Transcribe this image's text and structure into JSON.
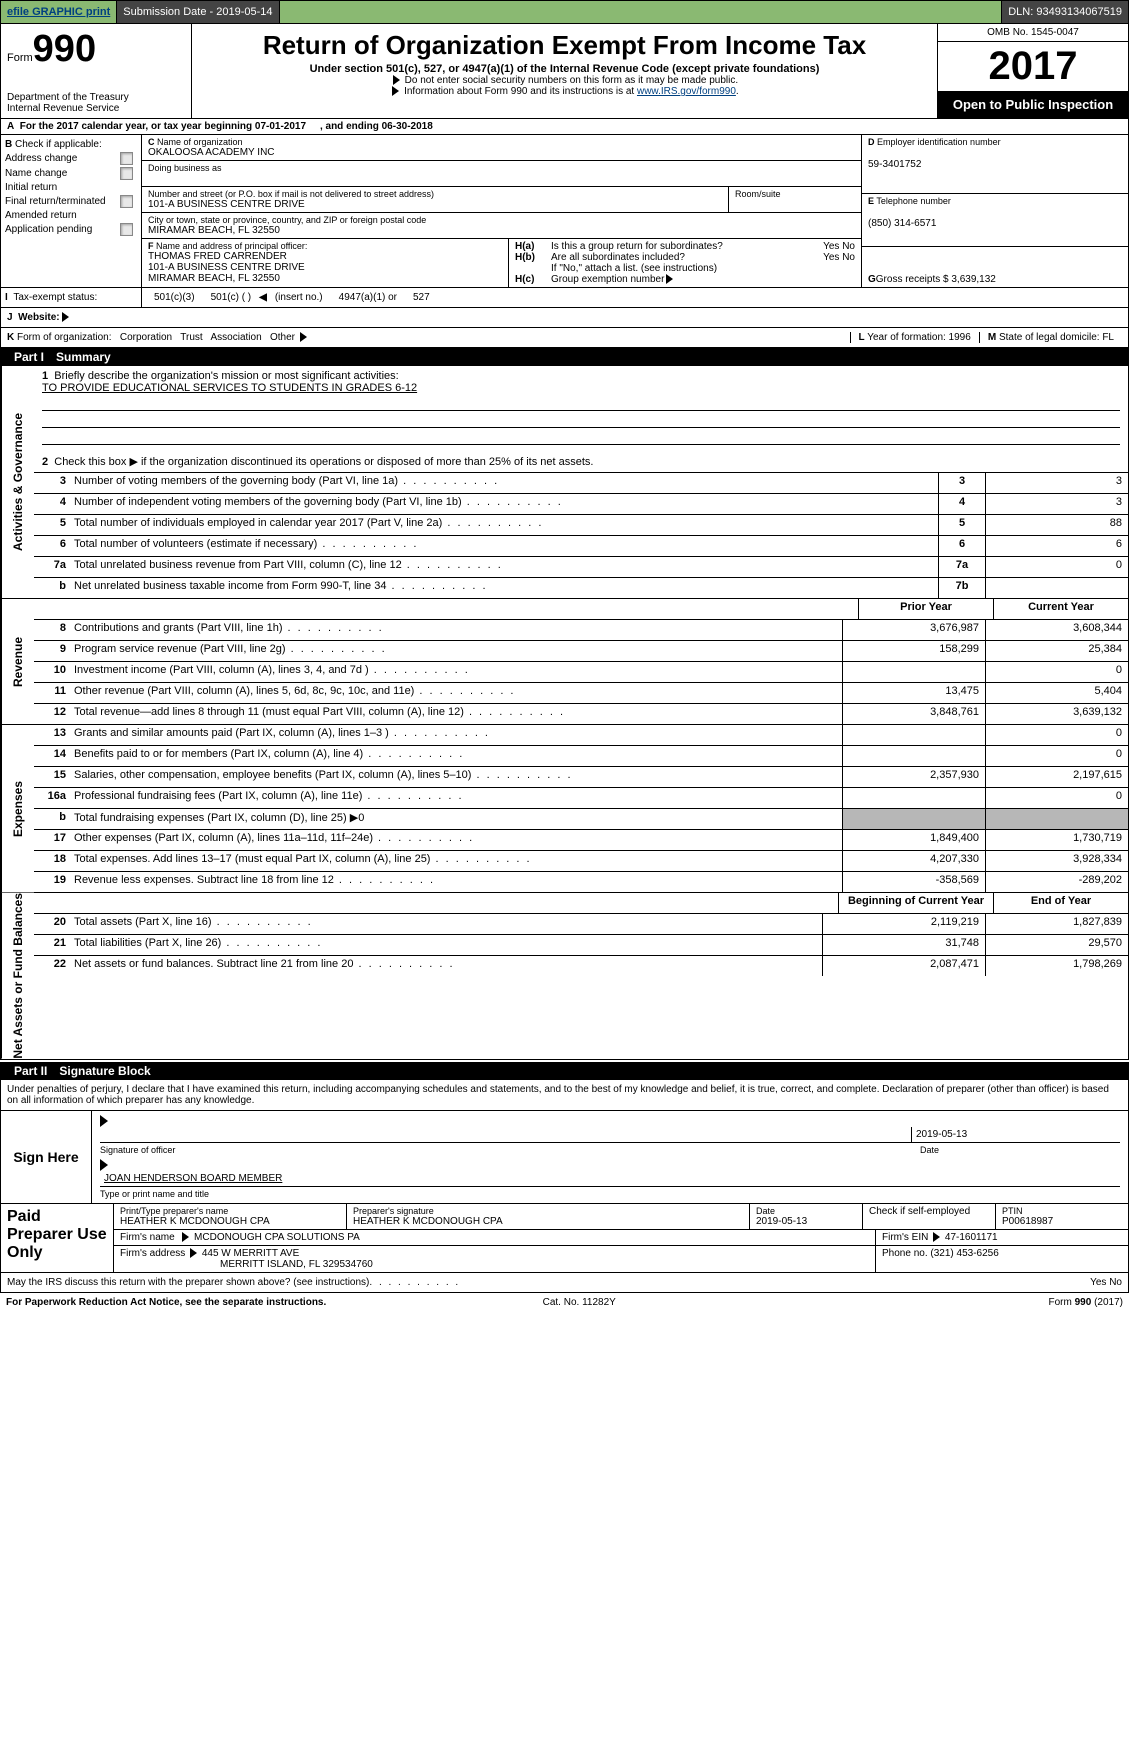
{
  "top": {
    "efile": "efile GRAPHIC print",
    "sub_date_lbl": "Submission Date - 2019-05-14",
    "dln_lbl": "DLN: 93493134067519"
  },
  "header": {
    "form_word": "Form",
    "form_no": "990",
    "dept1": "Department of the Treasury",
    "dept2": "Internal Revenue Service",
    "title": "Return of Organization Exempt From Income Tax",
    "subtitle": "Under section 501(c), 527, or 4947(a)(1) of the Internal Revenue Code (except private foundations)",
    "note1": "Do not enter social security numbers on this form as it may be made public.",
    "note2_a": "Information about Form 990 and its instructions is at ",
    "note2_link": "www.IRS.gov/form990",
    "omb": "OMB No. 1545-0047",
    "year": "2017",
    "open": "Open to Public Inspection"
  },
  "A": {
    "text_a": "For the 2017 calendar year, or tax year beginning 07-01-2017",
    "text_b": ", and ending 06-30-2018"
  },
  "B": {
    "hdr": "Check if applicable:",
    "items": [
      "Address change",
      "Name change",
      "Initial return",
      "Final return/terminated",
      "Amended return",
      "Application pending"
    ]
  },
  "C": {
    "name_lbl": "Name of organization",
    "name": "OKALOOSA ACADEMY INC",
    "dba_lbl": "Doing business as",
    "addr_lbl": "Number and street (or P.O. box if mail is not delivered to street address)",
    "room_lbl": "Room/suite",
    "addr": "101-A BUSINESS CENTRE DRIVE",
    "city_lbl": "City or town, state or province, country, and ZIP or foreign postal code",
    "city": "MIRAMAR BEACH, FL  32550",
    "F_lbl": "Name and address of principal officer:",
    "F1": "THOMAS FRED CARRENDER",
    "F2": "101-A BUSINESS CENTRE DRIVE",
    "F3": "MIRAMAR BEACH, FL  32550"
  },
  "D": {
    "ein_lbl": "Employer identification number",
    "ein": "59-3401752",
    "tel_lbl": "Telephone number",
    "tel": "(850) 314-6571",
    "gross_lbl": "Gross receipts $ 3,639,132"
  },
  "H": {
    "a": "Is this a group return for subordinates?",
    "b": "Are all subordinates included?",
    "b2": "If \"No,\" attach a list. (see instructions)",
    "c": "Group exemption number",
    "yes": "Yes",
    "no": "No"
  },
  "I": {
    "lbl": "Tax-exempt status:",
    "o1": "501(c)(3)",
    "o2": "501(c) (  )",
    "o2b": "(insert no.)",
    "o3": "4947(a)(1) or",
    "o4": "527"
  },
  "J": {
    "lbl": "Website:"
  },
  "K": {
    "lbl": "Form of organization:",
    "o1": "Corporation",
    "o2": "Trust",
    "o3": "Association",
    "o4": "Other",
    "L": "Year of formation: 1996",
    "M": "State of legal domicile: FL"
  },
  "part1": {
    "hdr": "Part I",
    "ttl": "Summary",
    "vlab_gov": "Activities & Governance",
    "vlab_rev": "Revenue",
    "vlab_exp": "Expenses",
    "vlab_net": "Net Assets or Fund Balances",
    "l1": "Briefly describe the organization's mission or most significant activities:",
    "l1v": "TO PROVIDE EDUCATIONAL SERVICES TO STUDENTS IN GRADES 6-12",
    "l2": "Check this box ▶   if the organization discontinued its operations or disposed of more than 25% of its net assets.",
    "lines_gov": [
      {
        "no": "3",
        "txt": "Number of voting members of the governing body (Part VI, line 1a)",
        "box": "3",
        "val": "3"
      },
      {
        "no": "4",
        "txt": "Number of independent voting members of the governing body (Part VI, line 1b)",
        "box": "4",
        "val": "3"
      },
      {
        "no": "5",
        "txt": "Total number of individuals employed in calendar year 2017 (Part V, line 2a)",
        "box": "5",
        "val": "88"
      },
      {
        "no": "6",
        "txt": "Total number of volunteers (estimate if necessary)",
        "box": "6",
        "val": "6"
      },
      {
        "no": "7a",
        "txt": "Total unrelated business revenue from Part VIII, column (C), line 12",
        "box": "7a",
        "val": "0"
      },
      {
        "no": "b",
        "txt": "Net unrelated business taxable income from Form 990-T, line 34",
        "box": "7b",
        "val": ""
      }
    ],
    "prior": "Prior Year",
    "curr": "Current Year",
    "rev": [
      {
        "no": "8",
        "txt": "Contributions and grants (Part VIII, line 1h)",
        "p": "3,676,987",
        "c": "3,608,344"
      },
      {
        "no": "9",
        "txt": "Program service revenue (Part VIII, line 2g)",
        "p": "158,299",
        "c": "25,384"
      },
      {
        "no": "10",
        "txt": "Investment income (Part VIII, column (A), lines 3, 4, and 7d )",
        "p": "",
        "c": "0"
      },
      {
        "no": "11",
        "txt": "Other revenue (Part VIII, column (A), lines 5, 6d, 8c, 9c, 10c, and 11e)",
        "p": "13,475",
        "c": "5,404"
      },
      {
        "no": "12",
        "txt": "Total revenue—add lines 8 through 11 (must equal Part VIII, column (A), line 12)",
        "p": "3,848,761",
        "c": "3,639,132"
      }
    ],
    "exp": [
      {
        "no": "13",
        "txt": "Grants and similar amounts paid (Part IX, column (A), lines 1–3 )",
        "p": "",
        "c": "0"
      },
      {
        "no": "14",
        "txt": "Benefits paid to or for members (Part IX, column (A), line 4)",
        "p": "",
        "c": "0"
      },
      {
        "no": "15",
        "txt": "Salaries, other compensation, employee benefits (Part IX, column (A), lines 5–10)",
        "p": "2,357,930",
        "c": "2,197,615"
      },
      {
        "no": "16a",
        "txt": "Professional fundraising fees (Part IX, column (A), line 11e)",
        "p": "",
        "c": "0"
      },
      {
        "no": "b",
        "txt": "Total fundraising expenses (Part IX, column (D), line 25) ▶0",
        "p": "SHADE",
        "c": "SHADE"
      },
      {
        "no": "17",
        "txt": "Other expenses (Part IX, column (A), lines 11a–11d, 11f–24e)",
        "p": "1,849,400",
        "c": "1,730,719"
      },
      {
        "no": "18",
        "txt": "Total expenses. Add lines 13–17 (must equal Part IX, column (A), line 25)",
        "p": "4,207,330",
        "c": "3,928,334"
      },
      {
        "no": "19",
        "txt": "Revenue less expenses. Subtract line 18 from line 12",
        "p": "-358,569",
        "c": "-289,202"
      }
    ],
    "beg": "Beginning of Current Year",
    "end": "End of Year",
    "net": [
      {
        "no": "20",
        "txt": "Total assets (Part X, line 16)",
        "p": "2,119,219",
        "c": "1,827,839"
      },
      {
        "no": "21",
        "txt": "Total liabilities (Part X, line 26)",
        "p": "31,748",
        "c": "29,570"
      },
      {
        "no": "22",
        "txt": "Net assets or fund balances. Subtract line 21 from line 20",
        "p": "2,087,471",
        "c": "1,798,269"
      }
    ]
  },
  "part2": {
    "hdr": "Part II",
    "ttl": "Signature Block",
    "penalty": "Under penalties of perjury, I declare that I have examined this return, including accompanying schedules and statements, and to the best of my knowledge and belief, it is true, correct, and complete. Declaration of preparer (other than officer) is based on all information of which preparer has any knowledge.",
    "sign_here": "Sign Here",
    "sig_date": "2019-05-13",
    "sig_cap1": "Signature of officer",
    "sig_cap1b": "Date",
    "sig_name": "JOAN HENDERSON  BOARD MEMBER",
    "sig_cap2": "Type or print name and title",
    "paid": "Paid Preparer Use Only",
    "p_name_lbl": "Print/Type preparer's name",
    "p_name": "HEATHER K MCDONOUGH CPA",
    "p_sig_lbl": "Preparer's signature",
    "p_sig": "HEATHER K MCDONOUGH CPA",
    "p_date_lbl": "Date",
    "p_date": "2019-05-13",
    "p_chk": "Check       if self-employed",
    "p_ptin_lbl": "PTIN",
    "p_ptin": "P00618987",
    "firm_n_lbl": "Firm's name",
    "firm_n": "MCDONOUGH CPA SOLUTIONS PA",
    "firm_ein_lbl": "Firm's EIN",
    "firm_ein": "47-1601171",
    "firm_a_lbl": "Firm's address",
    "firm_a1": "445 W MERRITT AVE",
    "firm_a2": "MERRITT ISLAND, FL  329534760",
    "firm_ph_lbl": "Phone no.",
    "firm_ph": "(321) 453-6256",
    "discuss": "May the IRS discuss this return with the preparer shown above? (see instructions)",
    "yes": "Yes",
    "no": "No"
  },
  "footer": {
    "l": "For Paperwork Reduction Act Notice, see the separate instructions.",
    "c": "Cat. No. 11282Y",
    "r": "Form 990 (2017)"
  }
}
